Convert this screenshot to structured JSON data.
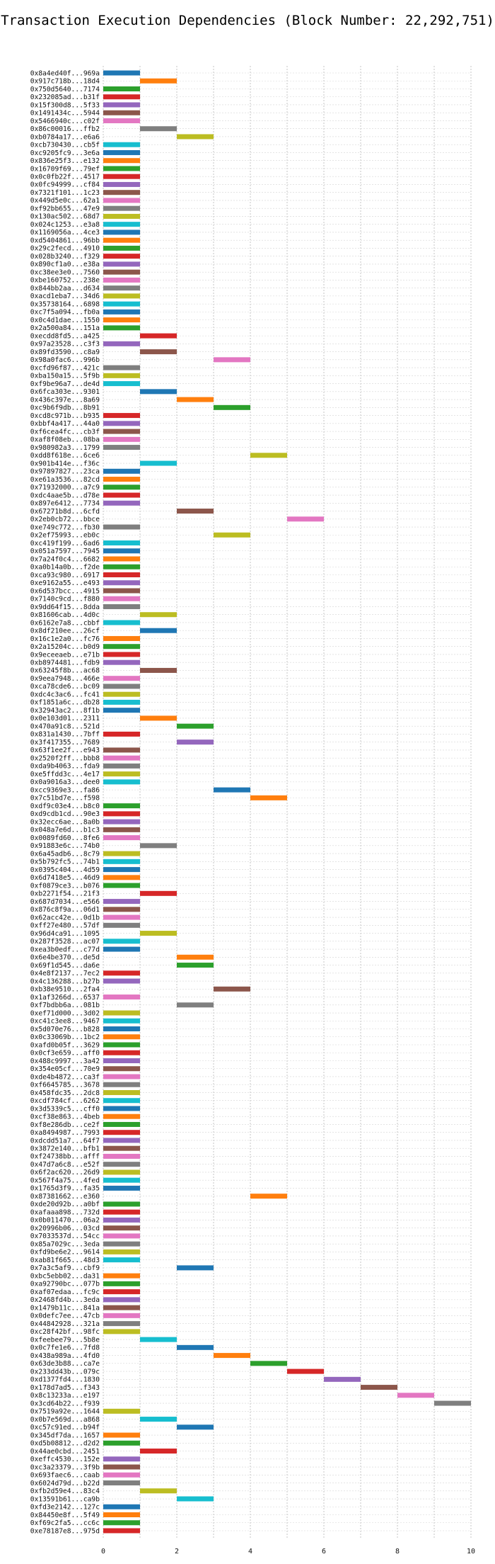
{
  "chart_data": {
    "type": "gantt",
    "title": "Transaction Execution Dependencies (Block Number: 22,292,751)",
    "xlabel": "",
    "ylabel": "",
    "xlim": [
      0,
      10
    ],
    "x_ticks": [
      "0",
      "2",
      "4",
      "6",
      "8",
      "10"
    ],
    "grid": {
      "vertical": true,
      "horizontal": true,
      "style": "dotted"
    },
    "palette": [
      "#1f77b4",
      "#ff7f0e",
      "#2ca02c",
      "#d62728",
      "#9467bd",
      "#8c564b",
      "#e377c2",
      "#7f7f7f",
      "#bcbd22",
      "#17becf"
    ],
    "series": [
      {
        "label": "0x8a4ed40f...969a",
        "start": 0,
        "end": 1
      },
      {
        "label": "0x917c718b...18d4",
        "start": 1,
        "end": 2
      },
      {
        "label": "0x750d5640...7174",
        "start": 0,
        "end": 1
      },
      {
        "label": "0x232085ad...b31f",
        "start": 0,
        "end": 1
      },
      {
        "label": "0x15f300d8...5f33",
        "start": 0,
        "end": 1
      },
      {
        "label": "0x1491434c...5944",
        "start": 0,
        "end": 1
      },
      {
        "label": "0x5466940c...c02f",
        "start": 0,
        "end": 1
      },
      {
        "label": "0x86c00016...ffb2",
        "start": 1,
        "end": 2
      },
      {
        "label": "0xb0784a17...e6a6",
        "start": 2,
        "end": 3
      },
      {
        "label": "0xcb730430...cb5f",
        "start": 0,
        "end": 1
      },
      {
        "label": "0xc9205fc9...3e6a",
        "start": 0,
        "end": 1
      },
      {
        "label": "0x836e25f3...e132",
        "start": 0,
        "end": 1
      },
      {
        "label": "0x16709f69...79ef",
        "start": 0,
        "end": 1
      },
      {
        "label": "0x0c0fb22f...4517",
        "start": 0,
        "end": 1
      },
      {
        "label": "0x0fc94999...cf84",
        "start": 0,
        "end": 1
      },
      {
        "label": "0x7321f101...1c23",
        "start": 0,
        "end": 1
      },
      {
        "label": "0x449d5e0c...62a1",
        "start": 0,
        "end": 1
      },
      {
        "label": "0xf92bb655...47e9",
        "start": 0,
        "end": 1
      },
      {
        "label": "0x130ac502...68d7",
        "start": 0,
        "end": 1
      },
      {
        "label": "0x024c1253...e3a8",
        "start": 0,
        "end": 1
      },
      {
        "label": "0x1169056a...4ce3",
        "start": 0,
        "end": 1
      },
      {
        "label": "0xd5404861...96bb",
        "start": 0,
        "end": 1
      },
      {
        "label": "0x29c2fecd...4910",
        "start": 0,
        "end": 1
      },
      {
        "label": "0x028b3240...f329",
        "start": 0,
        "end": 1
      },
      {
        "label": "0x890cf1a0...e38a",
        "start": 0,
        "end": 1
      },
      {
        "label": "0xc38ee3e0...7560",
        "start": 0,
        "end": 1
      },
      {
        "label": "0xbe160752...238e",
        "start": 0,
        "end": 1
      },
      {
        "label": "0x844bb2aa...d634",
        "start": 0,
        "end": 1
      },
      {
        "label": "0xacd1eba7...34d6",
        "start": 0,
        "end": 1
      },
      {
        "label": "0x35738164...6898",
        "start": 0,
        "end": 1
      },
      {
        "label": "0xc7f5a094...fb0a",
        "start": 0,
        "end": 1
      },
      {
        "label": "0x0c4d1dae...1550",
        "start": 0,
        "end": 1
      },
      {
        "label": "0x2a500a84...151a",
        "start": 0,
        "end": 1
      },
      {
        "label": "0xecdd8fd5...a425",
        "start": 1,
        "end": 2
      },
      {
        "label": "0x97a23528...c3f3",
        "start": 0,
        "end": 1
      },
      {
        "label": "0x89fd3590...c8a9",
        "start": 1,
        "end": 2
      },
      {
        "label": "0x98a0fac6...996b",
        "start": 3,
        "end": 4
      },
      {
        "label": "0xcfd96f87...421c",
        "start": 0,
        "end": 1
      },
      {
        "label": "0xba150a15...5f9b",
        "start": 0,
        "end": 1
      },
      {
        "label": "0xf9be96a7...de4d",
        "start": 0,
        "end": 1
      },
      {
        "label": "0x6fca303e...9301",
        "start": 1,
        "end": 2
      },
      {
        "label": "0x436c397e...8a69",
        "start": 2,
        "end": 3
      },
      {
        "label": "0xc9b6f9db...8b91",
        "start": 3,
        "end": 4
      },
      {
        "label": "0xcd8c971b...b935",
        "start": 0,
        "end": 1
      },
      {
        "label": "0xbbf4a417...44a0",
        "start": 0,
        "end": 1
      },
      {
        "label": "0xf6cea4fc...cb3f",
        "start": 0,
        "end": 1
      },
      {
        "label": "0xaf8f08eb...08ba",
        "start": 0,
        "end": 1
      },
      {
        "label": "0x980982a3...1799",
        "start": 0,
        "end": 1
      },
      {
        "label": "0xdd8f618e...6ce6",
        "start": 4,
        "end": 5
      },
      {
        "label": "0x901b414e...f36c",
        "start": 1,
        "end": 2
      },
      {
        "label": "0x97897827...23ca",
        "start": 0,
        "end": 1
      },
      {
        "label": "0xe61a3536...82cd",
        "start": 0,
        "end": 1
      },
      {
        "label": "0x71932000...a7c9",
        "start": 0,
        "end": 1
      },
      {
        "label": "0xdc4aae5b...d78e",
        "start": 0,
        "end": 1
      },
      {
        "label": "0x897e6412...7734",
        "start": 0,
        "end": 1
      },
      {
        "label": "0x67271b8d...6cfd",
        "start": 2,
        "end": 3
      },
      {
        "label": "0x2eb0cb72...bbce",
        "start": 5,
        "end": 6
      },
      {
        "label": "0xe749c772...fb30",
        "start": 0,
        "end": 1
      },
      {
        "label": "0x2ef75993...eb0c",
        "start": 3,
        "end": 4
      },
      {
        "label": "0xc419f199...6ad6",
        "start": 0,
        "end": 1
      },
      {
        "label": "0x051a7597...7945",
        "start": 0,
        "end": 1
      },
      {
        "label": "0x7a24f0c4...6682",
        "start": 0,
        "end": 1
      },
      {
        "label": "0xa0b14a0b...f2de",
        "start": 0,
        "end": 1
      },
      {
        "label": "0xca93c980...6917",
        "start": 0,
        "end": 1
      },
      {
        "label": "0xe9162a55...e493",
        "start": 0,
        "end": 1
      },
      {
        "label": "0x6d537bcc...4915",
        "start": 0,
        "end": 1
      },
      {
        "label": "0x7140c9cd...f880",
        "start": 0,
        "end": 1
      },
      {
        "label": "0x9dd64f15...8dda",
        "start": 0,
        "end": 1
      },
      {
        "label": "0x81606cab...4d0c",
        "start": 1,
        "end": 2
      },
      {
        "label": "0x6162e7a8...cbbf",
        "start": 0,
        "end": 1
      },
      {
        "label": "0x8df210ee...26cf",
        "start": 1,
        "end": 2
      },
      {
        "label": "0x16c1e2a0...fc76",
        "start": 0,
        "end": 1
      },
      {
        "label": "0x2a15204c...b0d9",
        "start": 0,
        "end": 1
      },
      {
        "label": "0x9eceeaeb...e71b",
        "start": 0,
        "end": 1
      },
      {
        "label": "0xb8974481...fdb9",
        "start": 0,
        "end": 1
      },
      {
        "label": "0x63245f8b...ac68",
        "start": 1,
        "end": 2
      },
      {
        "label": "0x9eea7948...466e",
        "start": 0,
        "end": 1
      },
      {
        "label": "0xca78cde6...bc09",
        "start": 0,
        "end": 1
      },
      {
        "label": "0xdc4c3ac6...fc41",
        "start": 0,
        "end": 1
      },
      {
        "label": "0xf1851a6c...db28",
        "start": 0,
        "end": 1
      },
      {
        "label": "0x32943ac2...8f1b",
        "start": 0,
        "end": 1
      },
      {
        "label": "0x0e103d01...2311",
        "start": 1,
        "end": 2
      },
      {
        "label": "0x470a91c8...521d",
        "start": 2,
        "end": 3
      },
      {
        "label": "0x831a1430...7bff",
        "start": 0,
        "end": 1
      },
      {
        "label": "0x3f417355...7689",
        "start": 2,
        "end": 3
      },
      {
        "label": "0x63f1ee2f...e943",
        "start": 0,
        "end": 1
      },
      {
        "label": "0x2520f2ff...bbb8",
        "start": 0,
        "end": 1
      },
      {
        "label": "0xda9b4063...fda9",
        "start": 0,
        "end": 1
      },
      {
        "label": "0xe5ffdd3c...4e17",
        "start": 0,
        "end": 1
      },
      {
        "label": "0x0a9016a3...dee0",
        "start": 0,
        "end": 1
      },
      {
        "label": "0xcc9369e3...fa86",
        "start": 3,
        "end": 4
      },
      {
        "label": "0x7c51bd7e...f598",
        "start": 4,
        "end": 5
      },
      {
        "label": "0xdf9c03e4...b8c0",
        "start": 0,
        "end": 1
      },
      {
        "label": "0xd9cdb1cd...90e3",
        "start": 0,
        "end": 1
      },
      {
        "label": "0x32ecc6ae...8a0b",
        "start": 0,
        "end": 1
      },
      {
        "label": "0x048a7e6d...b1c3",
        "start": 0,
        "end": 1
      },
      {
        "label": "0x0089fd60...8fe6",
        "start": 0,
        "end": 1
      },
      {
        "label": "0x91883e6c...74b0",
        "start": 1,
        "end": 2
      },
      {
        "label": "0x6a45adb6...8c79",
        "start": 0,
        "end": 1
      },
      {
        "label": "0x5b792fc5...74b1",
        "start": 0,
        "end": 1
      },
      {
        "label": "0x0395c404...4d59",
        "start": 0,
        "end": 1
      },
      {
        "label": "0x6d7418e5...46d9",
        "start": 0,
        "end": 1
      },
      {
        "label": "0xf0879ce3...b076",
        "start": 0,
        "end": 1
      },
      {
        "label": "0xb2271f54...21f3",
        "start": 1,
        "end": 2
      },
      {
        "label": "0x687d7034...e566",
        "start": 0,
        "end": 1
      },
      {
        "label": "0x876c8f9a...06d1",
        "start": 0,
        "end": 1
      },
      {
        "label": "0x62acc42e...0d1b",
        "start": 0,
        "end": 1
      },
      {
        "label": "0xff27e480...57df",
        "start": 0,
        "end": 1
      },
      {
        "label": "0x96d4ca91...1095",
        "start": 1,
        "end": 2
      },
      {
        "label": "0x287f3528...ac07",
        "start": 0,
        "end": 1
      },
      {
        "label": "0xea3b0edf...c77d",
        "start": 0,
        "end": 1
      },
      {
        "label": "0x6e4be370...de5d",
        "start": 2,
        "end": 3
      },
      {
        "label": "0x69f1d545...da6e",
        "start": 2,
        "end": 3
      },
      {
        "label": "0x4e8f2137...7ec2",
        "start": 0,
        "end": 1
      },
      {
        "label": "0x4c136288...b27b",
        "start": 0,
        "end": 1
      },
      {
        "label": "0xb38e9510...2fa4",
        "start": 3,
        "end": 4
      },
      {
        "label": "0x1af3266d...6537",
        "start": 0,
        "end": 1
      },
      {
        "label": "0xf7bdbb6a...081b",
        "start": 2,
        "end": 3
      },
      {
        "label": "0xef71d000...3d02",
        "start": 0,
        "end": 1
      },
      {
        "label": "0xc41c3ee8...9467",
        "start": 0,
        "end": 1
      },
      {
        "label": "0x5d070e76...b828",
        "start": 0,
        "end": 1
      },
      {
        "label": "0x0c33069b...1bc2",
        "start": 0,
        "end": 1
      },
      {
        "label": "0xafd0b05f...3629",
        "start": 0,
        "end": 1
      },
      {
        "label": "0x0cf3e659...aff0",
        "start": 0,
        "end": 1
      },
      {
        "label": "0x488c9997...3a42",
        "start": 0,
        "end": 1
      },
      {
        "label": "0x354e05cf...70e9",
        "start": 0,
        "end": 1
      },
      {
        "label": "0xde4b4872...ca3f",
        "start": 0,
        "end": 1
      },
      {
        "label": "0xf6645785...3678",
        "start": 0,
        "end": 1
      },
      {
        "label": "0x458fdc35...2dc8",
        "start": 0,
        "end": 1
      },
      {
        "label": "0xcdf784cf...6262",
        "start": 0,
        "end": 1
      },
      {
        "label": "0x3d5339c5...cff0",
        "start": 0,
        "end": 1
      },
      {
        "label": "0xcf38e863...4beb",
        "start": 0,
        "end": 1
      },
      {
        "label": "0xf8e286db...ce2f",
        "start": 0,
        "end": 1
      },
      {
        "label": "0xa8494987...7993",
        "start": 0,
        "end": 1
      },
      {
        "label": "0xdcdd51a7...64f7",
        "start": 0,
        "end": 1
      },
      {
        "label": "0x3872e140...bfb1",
        "start": 0,
        "end": 1
      },
      {
        "label": "0xf24738bb...afff",
        "start": 0,
        "end": 1
      },
      {
        "label": "0x47d7a6c8...e52f",
        "start": 0,
        "end": 1
      },
      {
        "label": "0x6f2ac620...26d9",
        "start": 0,
        "end": 1
      },
      {
        "label": "0x567f4a75...4fed",
        "start": 0,
        "end": 1
      },
      {
        "label": "0x1765d3f9...fa35",
        "start": 0,
        "end": 1
      },
      {
        "label": "0x87381662...e360",
        "start": 4,
        "end": 5
      },
      {
        "label": "0xde20d92b...a0bf",
        "start": 0,
        "end": 1
      },
      {
        "label": "0xafaaa898...732d",
        "start": 0,
        "end": 1
      },
      {
        "label": "0x0b011470...06a2",
        "start": 0,
        "end": 1
      },
      {
        "label": "0x20996b06...03cd",
        "start": 0,
        "end": 1
      },
      {
        "label": "0x7033537d...54cc",
        "start": 0,
        "end": 1
      },
      {
        "label": "0x85a7029c...3eda",
        "start": 0,
        "end": 1
      },
      {
        "label": "0xfd9be6e2...9614",
        "start": 0,
        "end": 1
      },
      {
        "label": "0xab81f665...48d3",
        "start": 0,
        "end": 1
      },
      {
        "label": "0x7a3c5af9...cbf9",
        "start": 2,
        "end": 3
      },
      {
        "label": "0xbc5ebb02...da31",
        "start": 0,
        "end": 1
      },
      {
        "label": "0xa92790bc...077b",
        "start": 0,
        "end": 1
      },
      {
        "label": "0xaf07edaa...fc9c",
        "start": 0,
        "end": 1
      },
      {
        "label": "0x2468fd4b...3eda",
        "start": 0,
        "end": 1
      },
      {
        "label": "0x1479b11c...841a",
        "start": 0,
        "end": 1
      },
      {
        "label": "0x0defc7ee...47cb",
        "start": 0,
        "end": 1
      },
      {
        "label": "0x44842928...321a",
        "start": 0,
        "end": 1
      },
      {
        "label": "0xc28f42bf...98fc",
        "start": 0,
        "end": 1
      },
      {
        "label": "0xfeebee79...5b8e",
        "start": 1,
        "end": 2
      },
      {
        "label": "0x0c7fe1e6...7fd8",
        "start": 2,
        "end": 3
      },
      {
        "label": "0x438a989a...4fd0",
        "start": 3,
        "end": 4
      },
      {
        "label": "0x63de3b88...ca7e",
        "start": 4,
        "end": 5
      },
      {
        "label": "0x233dd43b...079c",
        "start": 5,
        "end": 6
      },
      {
        "label": "0xd1377fd4...1830",
        "start": 6,
        "end": 7
      },
      {
        "label": "0x178d7ad5...f343",
        "start": 7,
        "end": 8
      },
      {
        "label": "0x8c13233a...e197",
        "start": 8,
        "end": 9
      },
      {
        "label": "0x3cd64b22...f939",
        "start": 9,
        "end": 10
      },
      {
        "label": "0x7519a92e...1644",
        "start": 0,
        "end": 1
      },
      {
        "label": "0x0b7e569d...a868",
        "start": 1,
        "end": 2
      },
      {
        "label": "0xc57c91ed...b94f",
        "start": 2,
        "end": 3
      },
      {
        "label": "0x345df7da...1657",
        "start": 0,
        "end": 1
      },
      {
        "label": "0xd5b08812...d2d2",
        "start": 0,
        "end": 1
      },
      {
        "label": "0x44ae0cbd...2451",
        "start": 1,
        "end": 2
      },
      {
        "label": "0xeffc4530...152e",
        "start": 0,
        "end": 1
      },
      {
        "label": "0xc3a23379...3f9b",
        "start": 0,
        "end": 1
      },
      {
        "label": "0x693faec6...caab",
        "start": 0,
        "end": 1
      },
      {
        "label": "0x6024d79d...b22d",
        "start": 0,
        "end": 1
      },
      {
        "label": "0xfb2d59e4...83c4",
        "start": 1,
        "end": 2
      },
      {
        "label": "0x13591b61...ca9b",
        "start": 2,
        "end": 3
      },
      {
        "label": "0xfd3e2142...127c",
        "start": 0,
        "end": 1
      },
      {
        "label": "0x84450e8f...5f49",
        "start": 0,
        "end": 1
      },
      {
        "label": "0xf69c2fa5...cc6c",
        "start": 0,
        "end": 1
      },
      {
        "label": "0xe78187e8...975d",
        "start": 0,
        "end": 1
      }
    ]
  }
}
